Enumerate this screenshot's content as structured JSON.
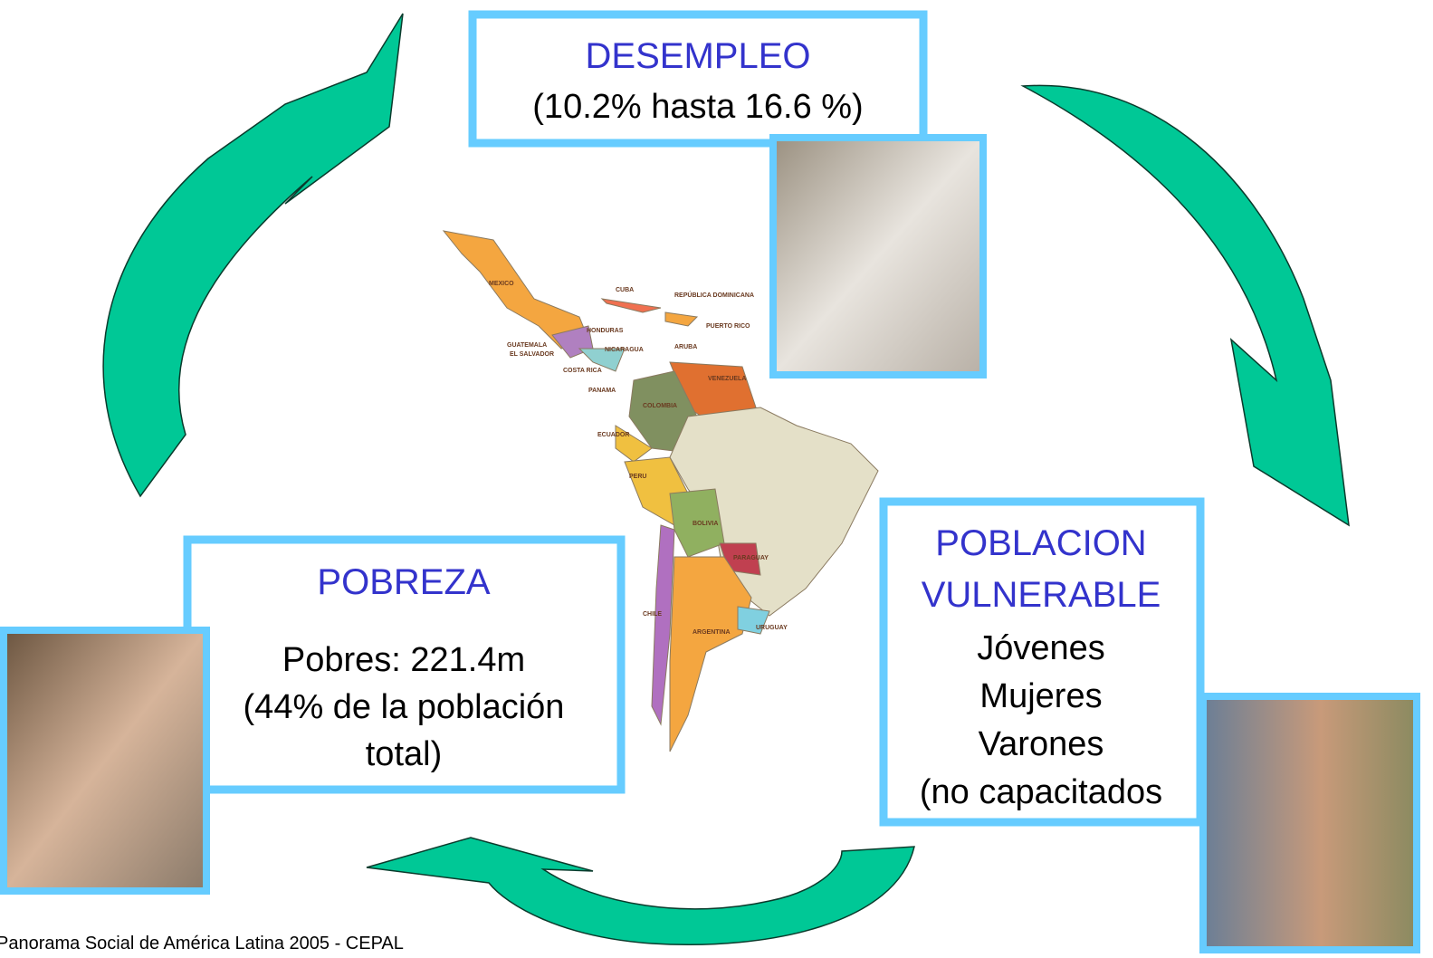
{
  "nodes": [
    {
      "title": [
        "DESEMPLEO"
      ],
      "lines": [
        "(10.2% hasta 16.6 %)"
      ]
    },
    {
      "title": [
        "POBLACION",
        "VULNERABLE"
      ],
      "lines": [
        "Jóvenes",
        "Mujeres",
        "Varones",
        "(no capacitados"
      ]
    },
    {
      "title": [
        "POBREZA"
      ],
      "lines": [
        "Pobres: 221.4m",
        "(44% de la población",
        "total)"
      ]
    }
  ],
  "map_labels": [
    "MEXICO",
    "CUBA",
    "REPÚBLICA DOMINICANA",
    "PUERTO RICO",
    "HONDURAS",
    "GUATEMALA",
    "EL SALVADOR",
    "NICARAGUA",
    "COSTA RICA",
    "PANAMA",
    "ARUBA",
    "VENEZUELA",
    "COLOMBIA",
    "ECUADOR",
    "PERU",
    "BOLIVIA",
    "PARAGUAY",
    "CHILE",
    "ARGENTINA",
    "URUGUAY"
  ],
  "source": "Panorama Social de América Latina 2005 - CEPAL"
}
